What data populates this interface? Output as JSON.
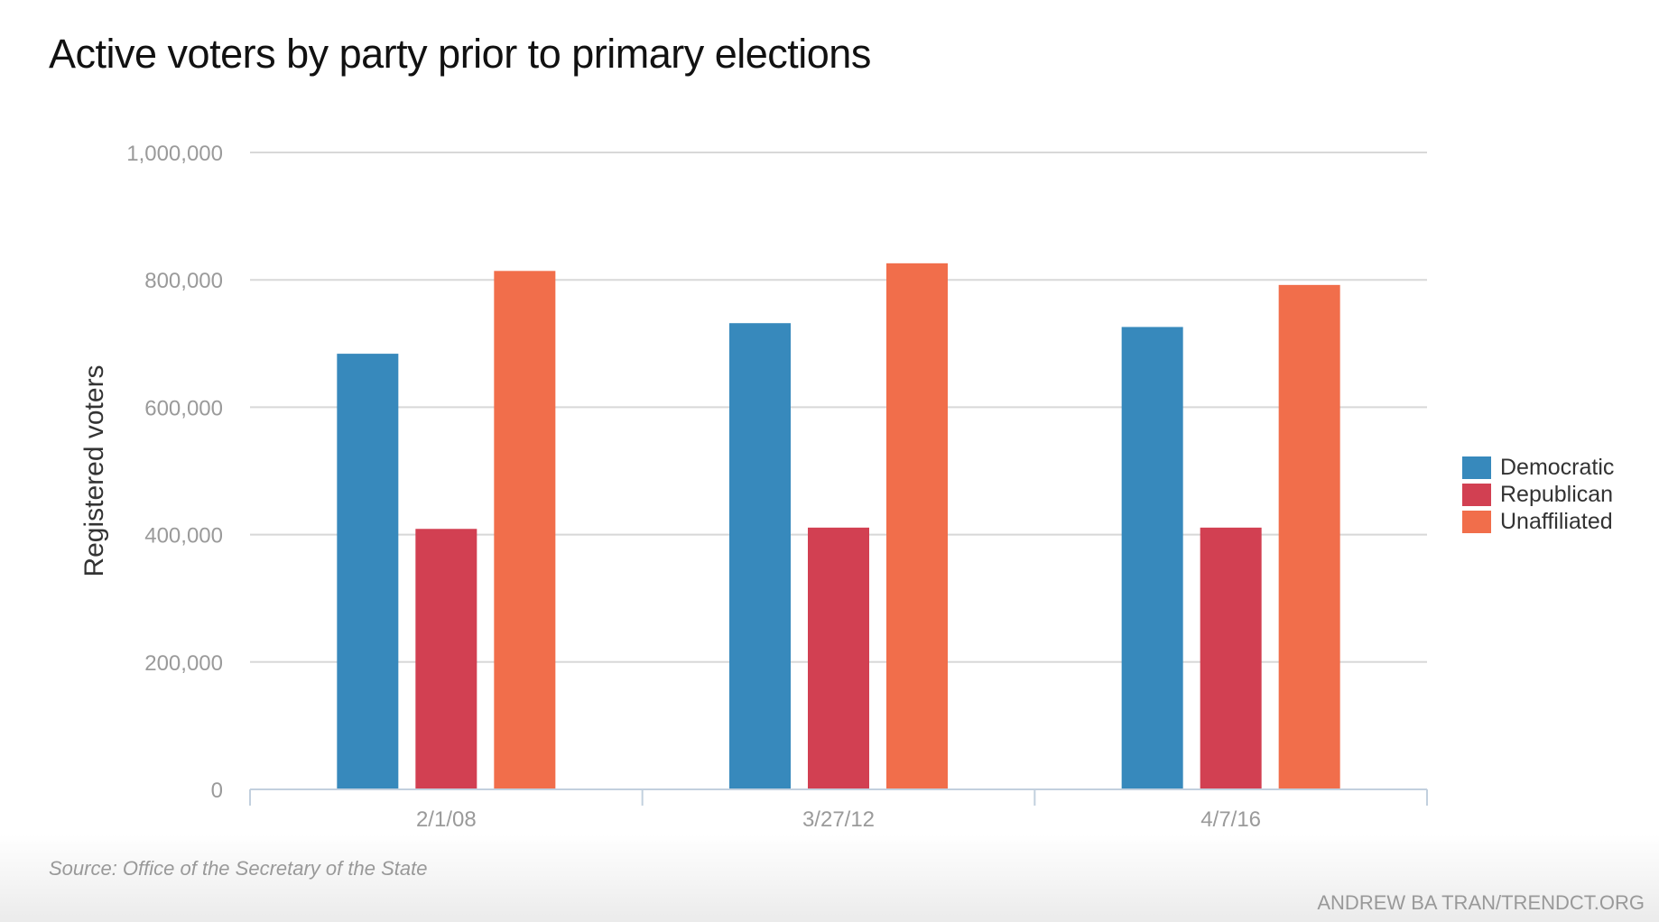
{
  "chart_data": {
    "type": "bar",
    "title": "Active voters by party prior to primary elections",
    "xlabel": "",
    "ylabel": "Registered voters",
    "categories": [
      "2/1/08",
      "3/27/12",
      "4/7/16"
    ],
    "series": [
      {
        "name": "Democratic",
        "color": "#3789bc",
        "values": [
          684000,
          732000,
          726000
        ]
      },
      {
        "name": "Republican",
        "color": "#d24052",
        "values": [
          409000,
          411000,
          411000
        ]
      },
      {
        "name": "Unaffiliated",
        "color": "#f16e4b",
        "values": [
          814000,
          826000,
          792000
        ]
      }
    ],
    "ylim": [
      0,
      1000000
    ],
    "yticks": [
      0,
      200000,
      400000,
      600000,
      800000,
      1000000
    ],
    "ytick_labels": [
      "0",
      "200,000",
      "400,000",
      "600,000",
      "800,000",
      "1,000,000"
    ],
    "grid": true,
    "legend_position": "right"
  },
  "footer": {
    "source": "Source: Office of the Secretary of the State",
    "credit": "ANDREW BA TRAN/TRENDCT.ORG"
  },
  "colors": {
    "grid": "#d8d8d8",
    "axis": "#c2d0de",
    "tick_text": "#9a9a9a"
  }
}
